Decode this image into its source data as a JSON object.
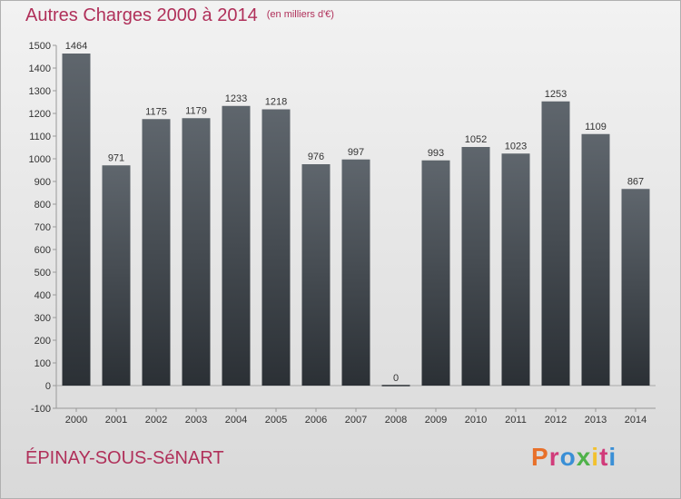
{
  "header": {
    "title": "Autres Charges 2000 à 2014",
    "units": "(en milliers d'€)"
  },
  "footer": {
    "place": "ÉPINAY-SOUS-SéNART",
    "brand": "Proxiti",
    "brand_colors": [
      "#e8702a",
      "#d13b7a",
      "#3a8fd6",
      "#4fb24a",
      "#f2c12e",
      "#d13b7a",
      "#3a8fd6"
    ]
  },
  "colors": {
    "title": "#b0305a",
    "bar_top": "#5f666d",
    "bar_bottom": "#2b3035"
  },
  "chart_data": {
    "type": "bar",
    "categories": [
      "2000",
      "2001",
      "2002",
      "2003",
      "2004",
      "2005",
      "2006",
      "2007",
      "2008",
      "2009",
      "2010",
      "2011",
      "2012",
      "2013",
      "2014"
    ],
    "values": [
      1464,
      971,
      1175,
      1179,
      1233,
      1218,
      976,
      997,
      0,
      993,
      1052,
      1023,
      1253,
      1109,
      867
    ],
    "title": "Autres Charges 2000 à 2014",
    "ylim": [
      -100,
      1500
    ],
    "yticks": [
      -100,
      0,
      100,
      200,
      300,
      400,
      500,
      600,
      700,
      800,
      900,
      1000,
      1100,
      1200,
      1300,
      1400,
      1500
    ],
    "grid": false
  }
}
